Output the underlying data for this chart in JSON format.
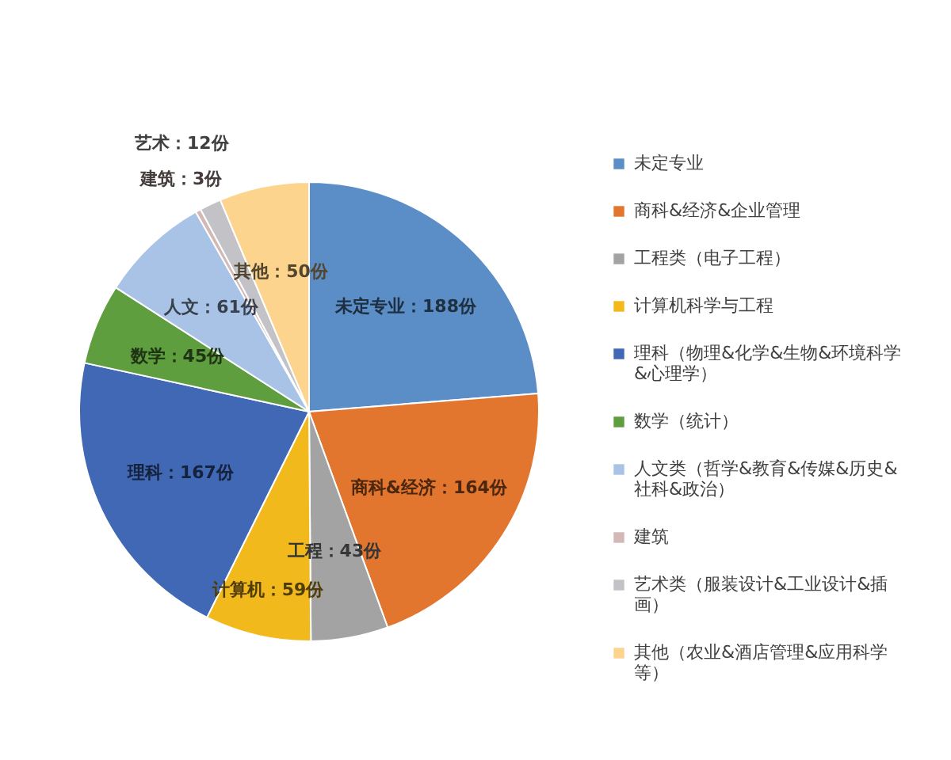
{
  "chart_data": {
    "type": "pie",
    "categories": [
      "未定专业",
      "商科&经济&企业管理",
      "工程类（电子工程）",
      "计算机科学与工程",
      "理科（物理&化学&生物&环境科学&心理学）",
      "数学（统计）",
      "人文类（哲学&教育&传媒&历史&社科&政治）",
      "建筑",
      "艺术类（服装设计&工业设计&插画）",
      "其他（农业&酒店管理&应用科学等）"
    ],
    "values": [
      188,
      164,
      43,
      59,
      167,
      45,
      61,
      3,
      12,
      50
    ],
    "colors": [
      "#5b8ec6",
      "#e2762e",
      "#a3a3a3",
      "#f2b91d",
      "#4068b4",
      "#5f9e3e",
      "#a9c3e6",
      "#d2b9b6",
      "#c3c3c7",
      "#fcd48e"
    ],
    "value_labels": [
      "未定专业：188份",
      "商科&经济：164份",
      "工程：43份",
      "计算机：59份",
      "理科：167份",
      "数学：45份",
      "人文：61份",
      "建筑：3份",
      "艺术：12份",
      "其他：50份"
    ],
    "legend": "right"
  }
}
